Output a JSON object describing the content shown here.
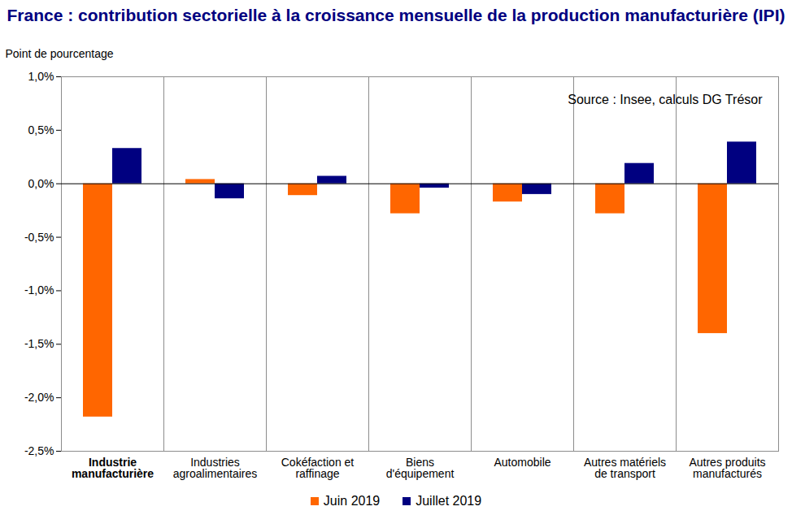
{
  "chart_data": {
    "type": "bar",
    "title": "France : contribution sectorielle à la croissance mensuelle de la production manufacturière (IPI)",
    "ylabel": "Point de pourcentage",
    "annotation": "Source : Insee, calculs DG Trésor",
    "categories": [
      "Industrie manufacturière",
      "Industries agroalimentaires",
      "Cokéfaction et raffinage",
      "Biens d'équipement",
      "Automobile",
      "Autres matériels de transport",
      "Autres produits manufacturés"
    ],
    "series": [
      {
        "name": "Juin 2019",
        "color": "#ff6600",
        "values": [
          -2.18,
          0.04,
          -0.11,
          -0.28,
          -0.17,
          -0.28,
          -1.4
        ]
      },
      {
        "name": "Juillet 2019",
        "color": "#000080",
        "values": [
          0.33,
          -0.14,
          0.07,
          -0.04,
          -0.1,
          0.19,
          0.39
        ]
      }
    ],
    "ylim": [
      -2.5,
      1.0
    ],
    "yticks": [
      {
        "value": -2.5,
        "label": "-2,5%"
      },
      {
        "value": -2.0,
        "label": "-2,0%"
      },
      {
        "value": -1.5,
        "label": "-1,5%"
      },
      {
        "value": -1.0,
        "label": "-1,0%"
      },
      {
        "value": -0.5,
        "label": "-0,5%"
      },
      {
        "value": 0,
        "label": "0,0%"
      },
      {
        "value": 0.5,
        "label": "0,5%"
      },
      {
        "value": 1.0,
        "label": "1,0%"
      }
    ],
    "legend": "bottom"
  }
}
